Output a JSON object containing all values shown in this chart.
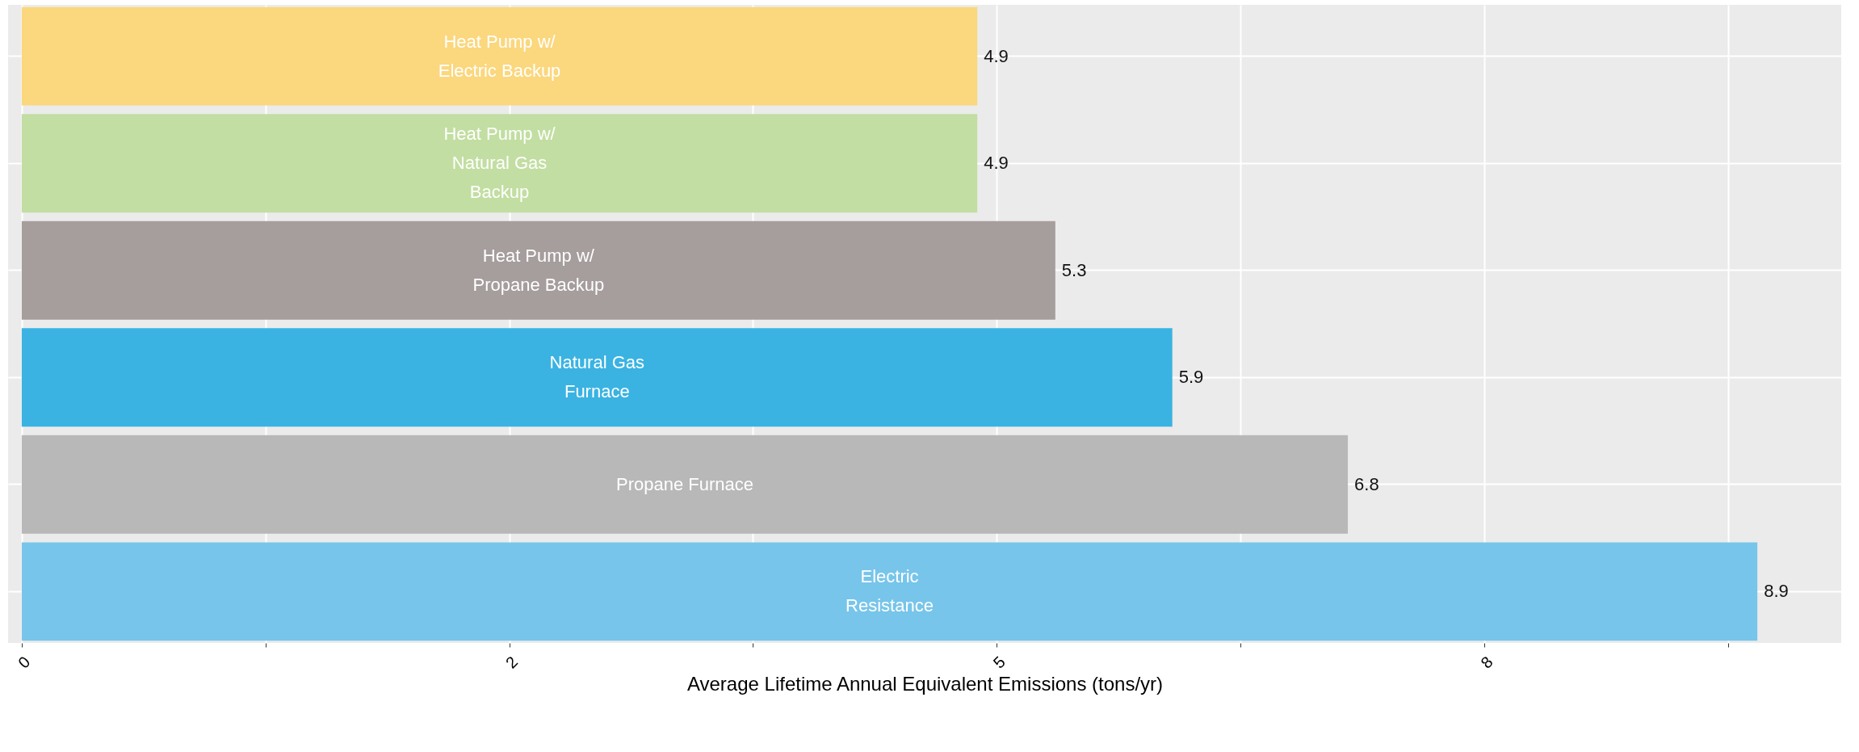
{
  "chart_data": {
    "type": "bar",
    "orientation": "horizontal",
    "xlabel": "Average Lifetime Annual Equivalent Emissions (tons/yr)",
    "categories": [
      "Heat Pump w/\nElectric Backup",
      "Heat Pump w/\nNatural Gas\nBackup",
      "Heat Pump w/\nPropane Backup",
      "Natural Gas\nFurnace",
      "Propane Furnace",
      "Electric\nResistance"
    ],
    "values": [
      4.9,
      4.9,
      5.3,
      5.9,
      6.8,
      8.9
    ],
    "colors": [
      "#fbd77d",
      "#c2dea2",
      "#a69d9d",
      "#3ab3e2",
      "#b8b8b8",
      "#77c5ea"
    ],
    "xlim": [
      -0.07,
      9.33
    ],
    "xticks": [
      0,
      {
        "value": 1.25,
        "label": null
      },
      {
        "value": 2.5,
        "label": "2"
      },
      {
        "value": 3.75,
        "label": null
      },
      5,
      {
        "value": 6.25,
        "label": null
      },
      {
        "value": 7.5,
        "label": "8"
      },
      {
        "value": 8.75,
        "label": null
      }
    ],
    "grid": true,
    "data_labels": true
  }
}
